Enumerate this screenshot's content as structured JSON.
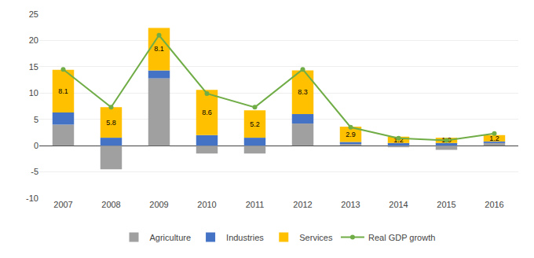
{
  "chart_data": {
    "type": "bar",
    "stacked": true,
    "categories": [
      "2007",
      "2008",
      "2009",
      "2010",
      "2011",
      "2012",
      "2013",
      "2014",
      "2015",
      "2016"
    ],
    "series": [
      {
        "name": "Agriculture",
        "type": "bar",
        "color": "#A0A0A0",
        "values": [
          4.0,
          -4.5,
          12.8,
          -1.5,
          -1.5,
          4.2,
          0.3,
          -0.3,
          -0.8,
          0.5
        ]
      },
      {
        "name": "Industries",
        "type": "bar",
        "color": "#4472C4",
        "values": [
          2.3,
          1.5,
          1.5,
          2.0,
          1.5,
          1.8,
          0.4,
          0.5,
          0.5,
          0.3
        ]
      },
      {
        "name": "Services",
        "type": "bar",
        "color": "#FFC000",
        "values": [
          8.1,
          5.8,
          8.1,
          8.6,
          5.2,
          8.3,
          2.9,
          1.2,
          1.0,
          1.2
        ],
        "data_labels": true,
        "value_labels": [
          "8.1",
          "5.8",
          "8.1",
          "8.6",
          "5.2",
          "8.3",
          "2.9",
          "1.2",
          "1.0",
          "1.2"
        ]
      },
      {
        "name": "Real GDP growth",
        "type": "line",
        "color": "#70AD47",
        "marker": "circle",
        "values": [
          14.5,
          7.3,
          21.0,
          9.9,
          7.3,
          14.5,
          3.5,
          1.4,
          1.0,
          2.3
        ]
      }
    ],
    "ylim": [
      -10.0,
      25.0
    ],
    "yticks": [
      -10.0,
      -5.0,
      0.0,
      5.0,
      10.0,
      15.0,
      20.0,
      25.0
    ],
    "grid": true,
    "legend": "bottom"
  }
}
